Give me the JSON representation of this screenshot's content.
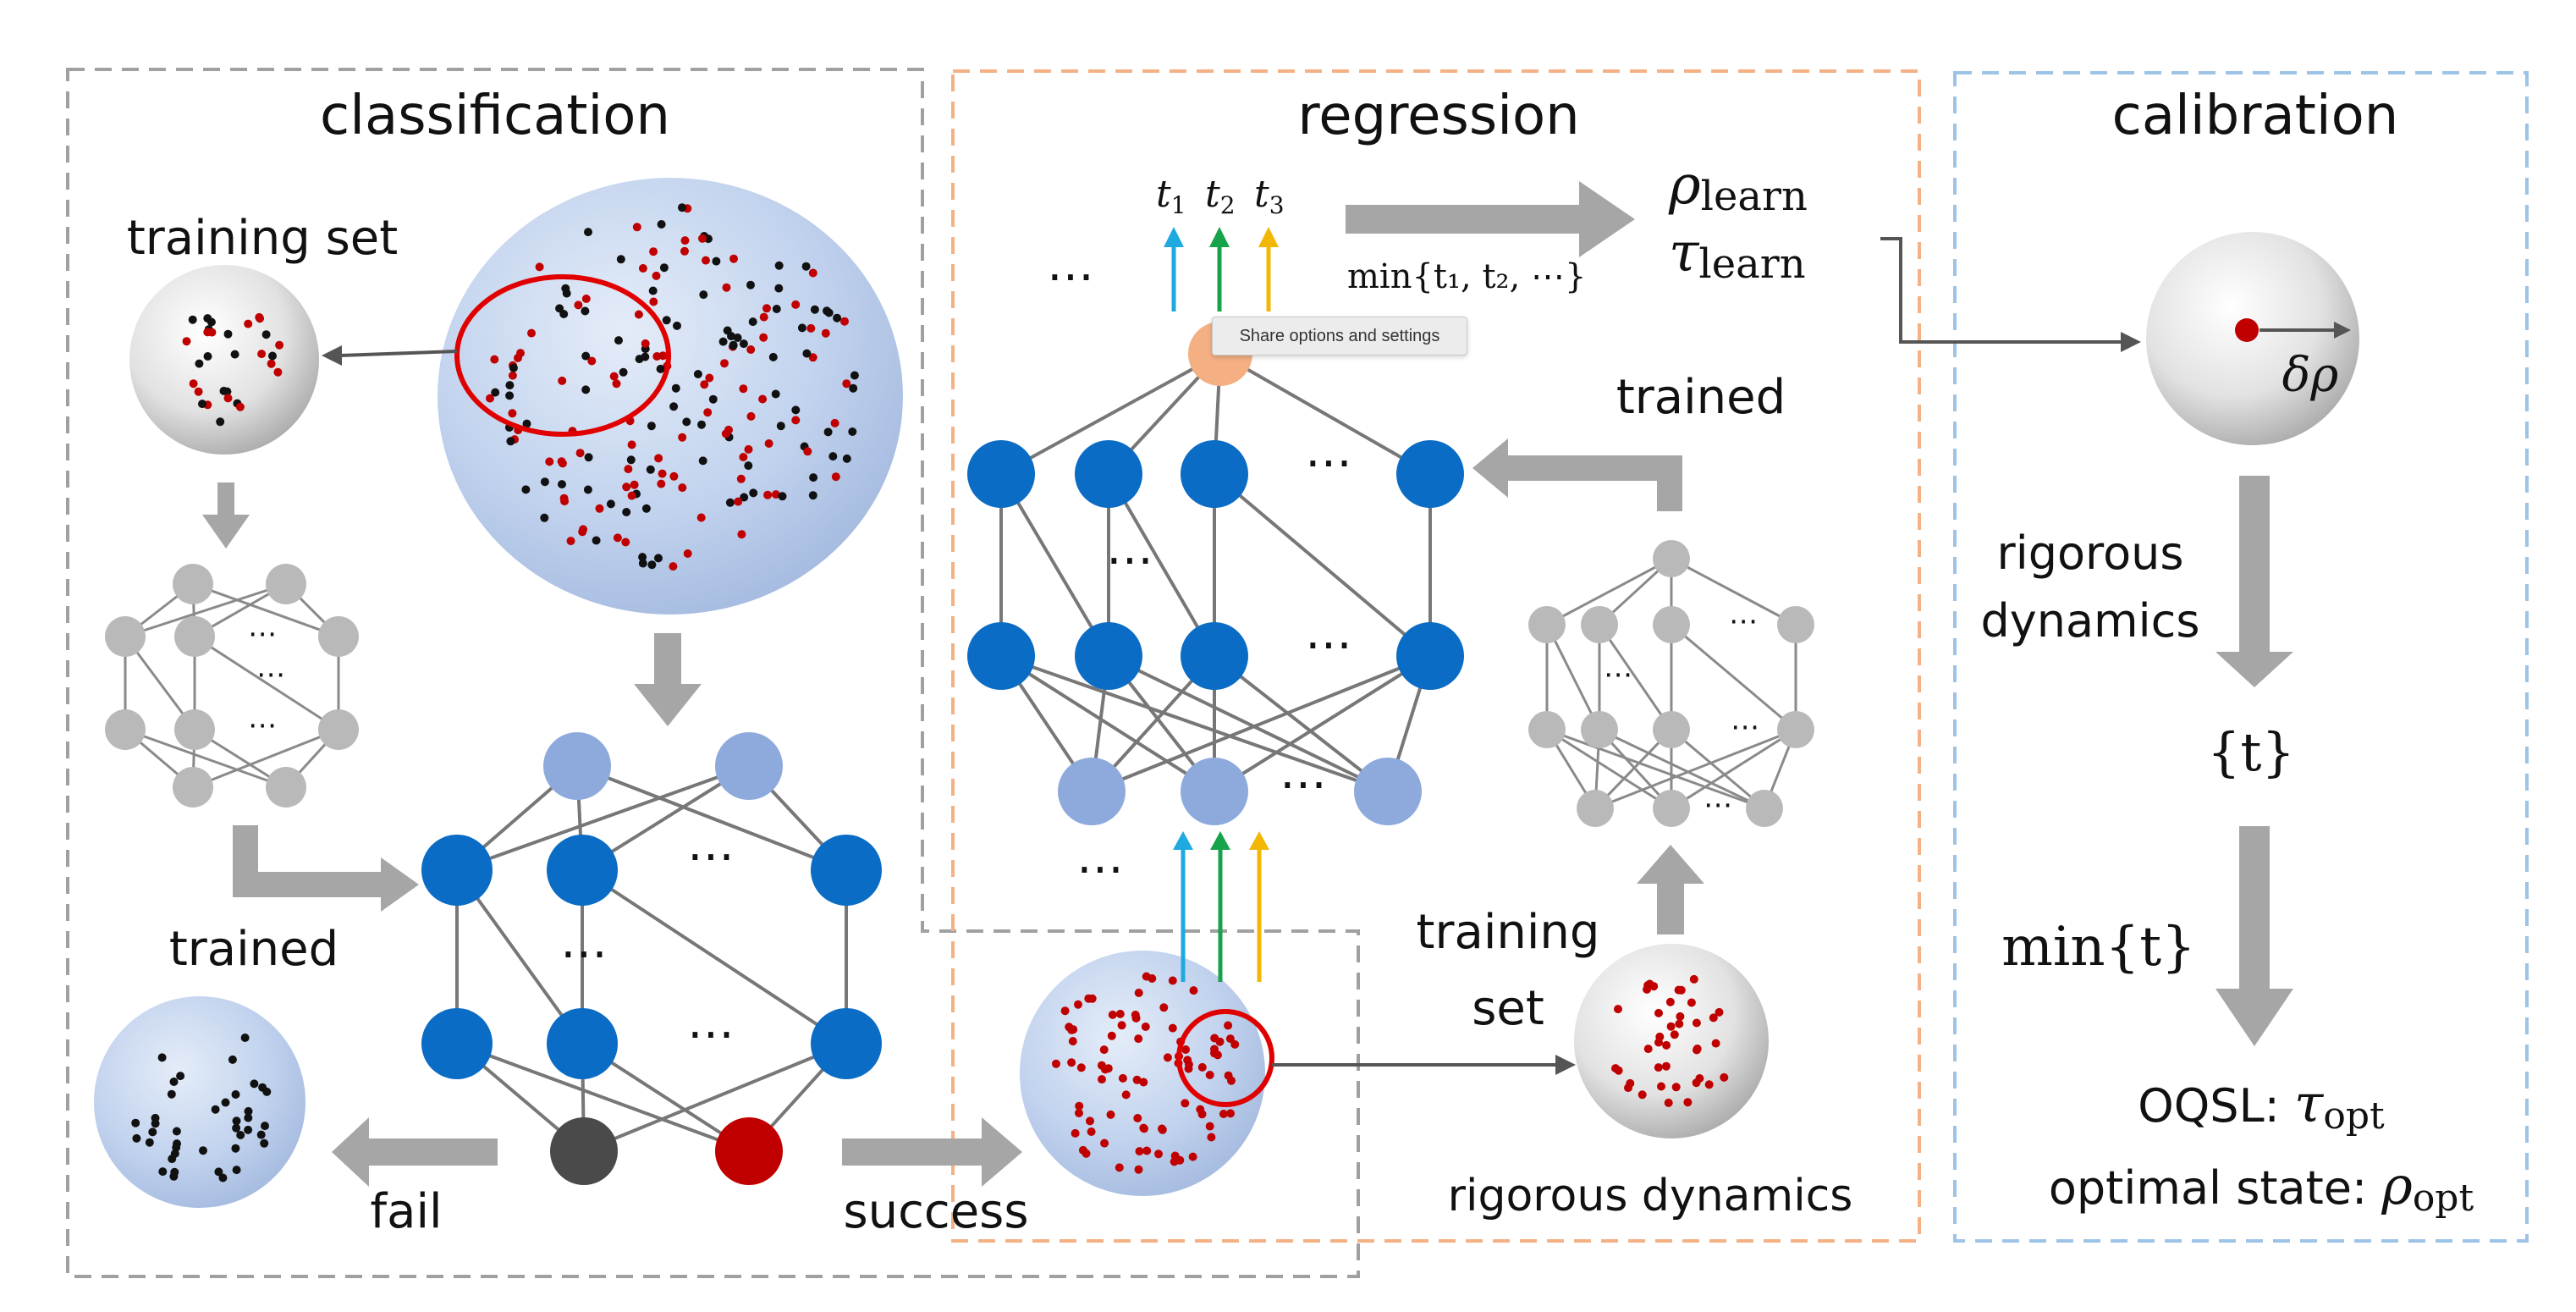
{
  "panels": {
    "classification": {
      "title": "classification",
      "training_set_label": "training set",
      "trained_label": "trained",
      "fail_label": "fail",
      "success_label": "success"
    },
    "regression": {
      "title": "regression",
      "output_t1": "t",
      "output_t2": "t",
      "output_t3": "t",
      "sub1": "1",
      "sub2": "2",
      "sub3": "3",
      "min_label": "min{t₁, t₂, ⋯}",
      "rho_symbol": "ρ",
      "tau_symbol": "τ",
      "learn_sub": "learn",
      "trained_label": "trained",
      "training_label_line1": "training",
      "training_label_line2": "set",
      "rigorous_dynamics_label": "rigorous dynamics",
      "ellipsis": "⋯"
    },
    "calibration": {
      "title": "calibration",
      "delta_rho": "δρ",
      "rigorous_line1": "rigorous",
      "rigorous_line2": "dynamics",
      "t_set": "{t}",
      "min_t": "min{t}",
      "oqsl_label": "OQSL: ",
      "tau_symbol": "τ",
      "opt_sub": "opt",
      "optimal_state_label": "optimal state: ",
      "rho_symbol": "ρ"
    }
  },
  "tooltip": {
    "text": "Share options and settings"
  },
  "colors": {
    "gray_node": "#b9b9b9",
    "blue_node": "#0a6cc4",
    "light_blue_node": "#8eaadc",
    "dark_node": "#4a4a4a",
    "red_node": "#c00000",
    "orange_node": "#f4b083",
    "arrow_gray": "#a6a6a6",
    "dash_gray": "#a0a0a0",
    "dash_orange": "#f4b183",
    "dash_blue": "#9dc3e6",
    "cyan_arrow": "#1fa9e1",
    "green_arrow": "#17a34a",
    "yellow_arrow": "#f2b705"
  },
  "icons": [
    "close-icon"
  ]
}
